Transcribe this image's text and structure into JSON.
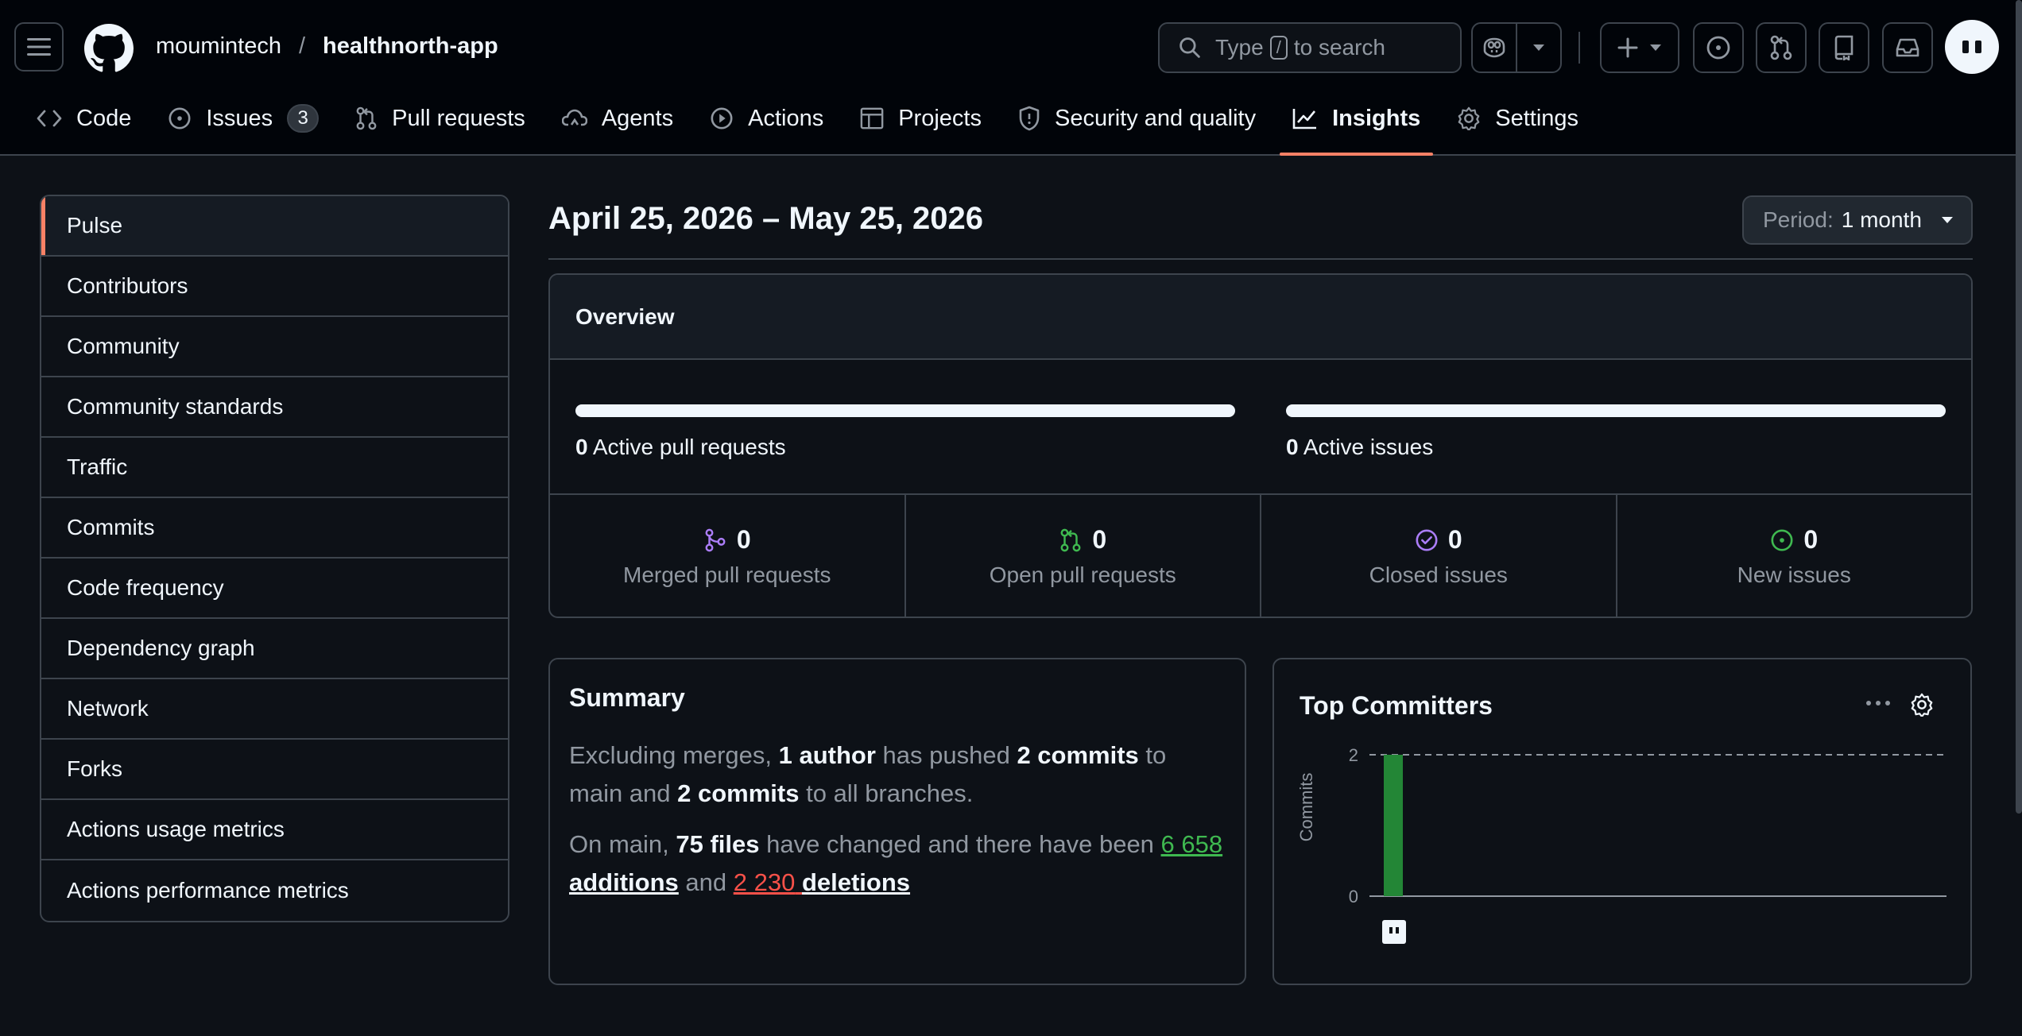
{
  "header": {
    "owner": "moumintech",
    "separator": "/",
    "repo": "healthnorth-app",
    "search": {
      "prefix": "Type",
      "key": "/",
      "suffix": "to search"
    }
  },
  "tabs": [
    {
      "label": "Code",
      "icon": "code-icon"
    },
    {
      "label": "Issues",
      "icon": "issue-opened-icon",
      "count": "3"
    },
    {
      "label": "Pull requests",
      "icon": "git-pull-request-icon"
    },
    {
      "label": "Agents",
      "icon": "agent-icon"
    },
    {
      "label": "Actions",
      "icon": "play-icon"
    },
    {
      "label": "Projects",
      "icon": "table-icon"
    },
    {
      "label": "Security and quality",
      "icon": "shield-icon"
    },
    {
      "label": "Insights",
      "icon": "graph-icon",
      "active": true
    },
    {
      "label": "Settings",
      "icon": "gear-icon"
    }
  ],
  "sidebar": {
    "items": [
      {
        "label": "Pulse",
        "active": true
      },
      {
        "label": "Contributors"
      },
      {
        "label": "Community"
      },
      {
        "label": "Community standards"
      },
      {
        "label": "Traffic"
      },
      {
        "label": "Commits"
      },
      {
        "label": "Code frequency"
      },
      {
        "label": "Dependency graph"
      },
      {
        "label": "Network"
      },
      {
        "label": "Forks"
      },
      {
        "label": "Actions usage metrics"
      },
      {
        "label": "Actions performance metrics"
      }
    ]
  },
  "main": {
    "date_range": "April 25, 2026 – May 25, 2026",
    "period": {
      "label": "Period:",
      "value": "1 month"
    },
    "overview": {
      "title": "Overview",
      "active_prs": {
        "count": "0",
        "label": "Active pull requests"
      },
      "active_issues": {
        "count": "0",
        "label": "Active issues"
      },
      "stats": [
        {
          "count": "0",
          "label": "Merged pull requests",
          "icon": "git-merge-icon",
          "color": "#ab7df8"
        },
        {
          "count": "0",
          "label": "Open pull requests",
          "icon": "git-pull-request-icon",
          "color": "#3fb950"
        },
        {
          "count": "0",
          "label": "Closed issues",
          "icon": "issue-closed-icon",
          "color": "#ab7df8"
        },
        {
          "count": "0",
          "label": "New issues",
          "icon": "issue-opened-icon",
          "color": "#3fb950"
        }
      ]
    },
    "summary": {
      "title": "Summary",
      "p1": [
        "Excluding merges, ",
        "1 author",
        " has pushed ",
        "2 commits",
        " to main and ",
        "2 commits",
        " to all branches."
      ],
      "p2": [
        "On main, ",
        "75 files",
        " have changed and there have been ",
        "6 658",
        "additions",
        " and ",
        "2 230",
        "deletions"
      ]
    },
    "top_committers": {
      "title": "Top Committers"
    }
  },
  "colors": {
    "accent": "#f78166",
    "bar_green": "#238636",
    "additions": "#3fb950",
    "deletions": "#f85149"
  },
  "chart_data": {
    "type": "bar",
    "title": "Top Committers",
    "ylabel": "Commits",
    "ylim": [
      0,
      2
    ],
    "yticks": [
      "0",
      "2"
    ],
    "categories": [
      ""
    ],
    "values": [
      2
    ],
    "grid": "dashed line at max"
  }
}
